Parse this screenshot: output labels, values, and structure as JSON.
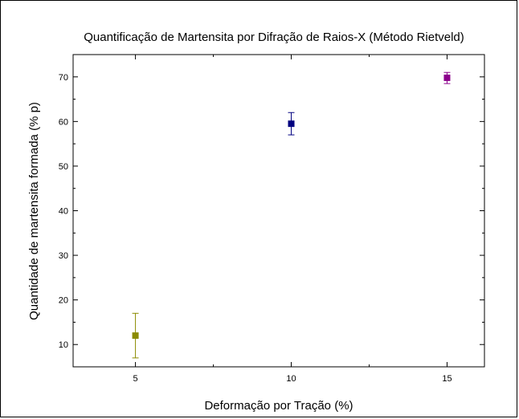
{
  "chart_data": {
    "type": "scatter",
    "title": "Quantificação de Martensita por Difração de Raios-X (Método Rietveld)",
    "xlabel": "Deformação por Tração (%)",
    "ylabel": "Quantidade de martensita formada (% p)",
    "xlim": [
      3,
      16.2
    ],
    "ylim": [
      5,
      75
    ],
    "xticks": [
      5,
      10,
      15
    ],
    "yticks": [
      10,
      20,
      30,
      40,
      50,
      60,
      70
    ],
    "grid": false,
    "legend": "none",
    "points": [
      {
        "x": 5,
        "y": 12.0,
        "err_low": 7.0,
        "err_high": 17.0,
        "color": "#8b8b00"
      },
      {
        "x": 10,
        "y": 59.5,
        "err_low": 57.0,
        "err_high": 62.0,
        "color": "#000080"
      },
      {
        "x": 15,
        "y": 69.8,
        "err_low": 68.5,
        "err_high": 71.0,
        "color": "#8b008b"
      }
    ]
  }
}
